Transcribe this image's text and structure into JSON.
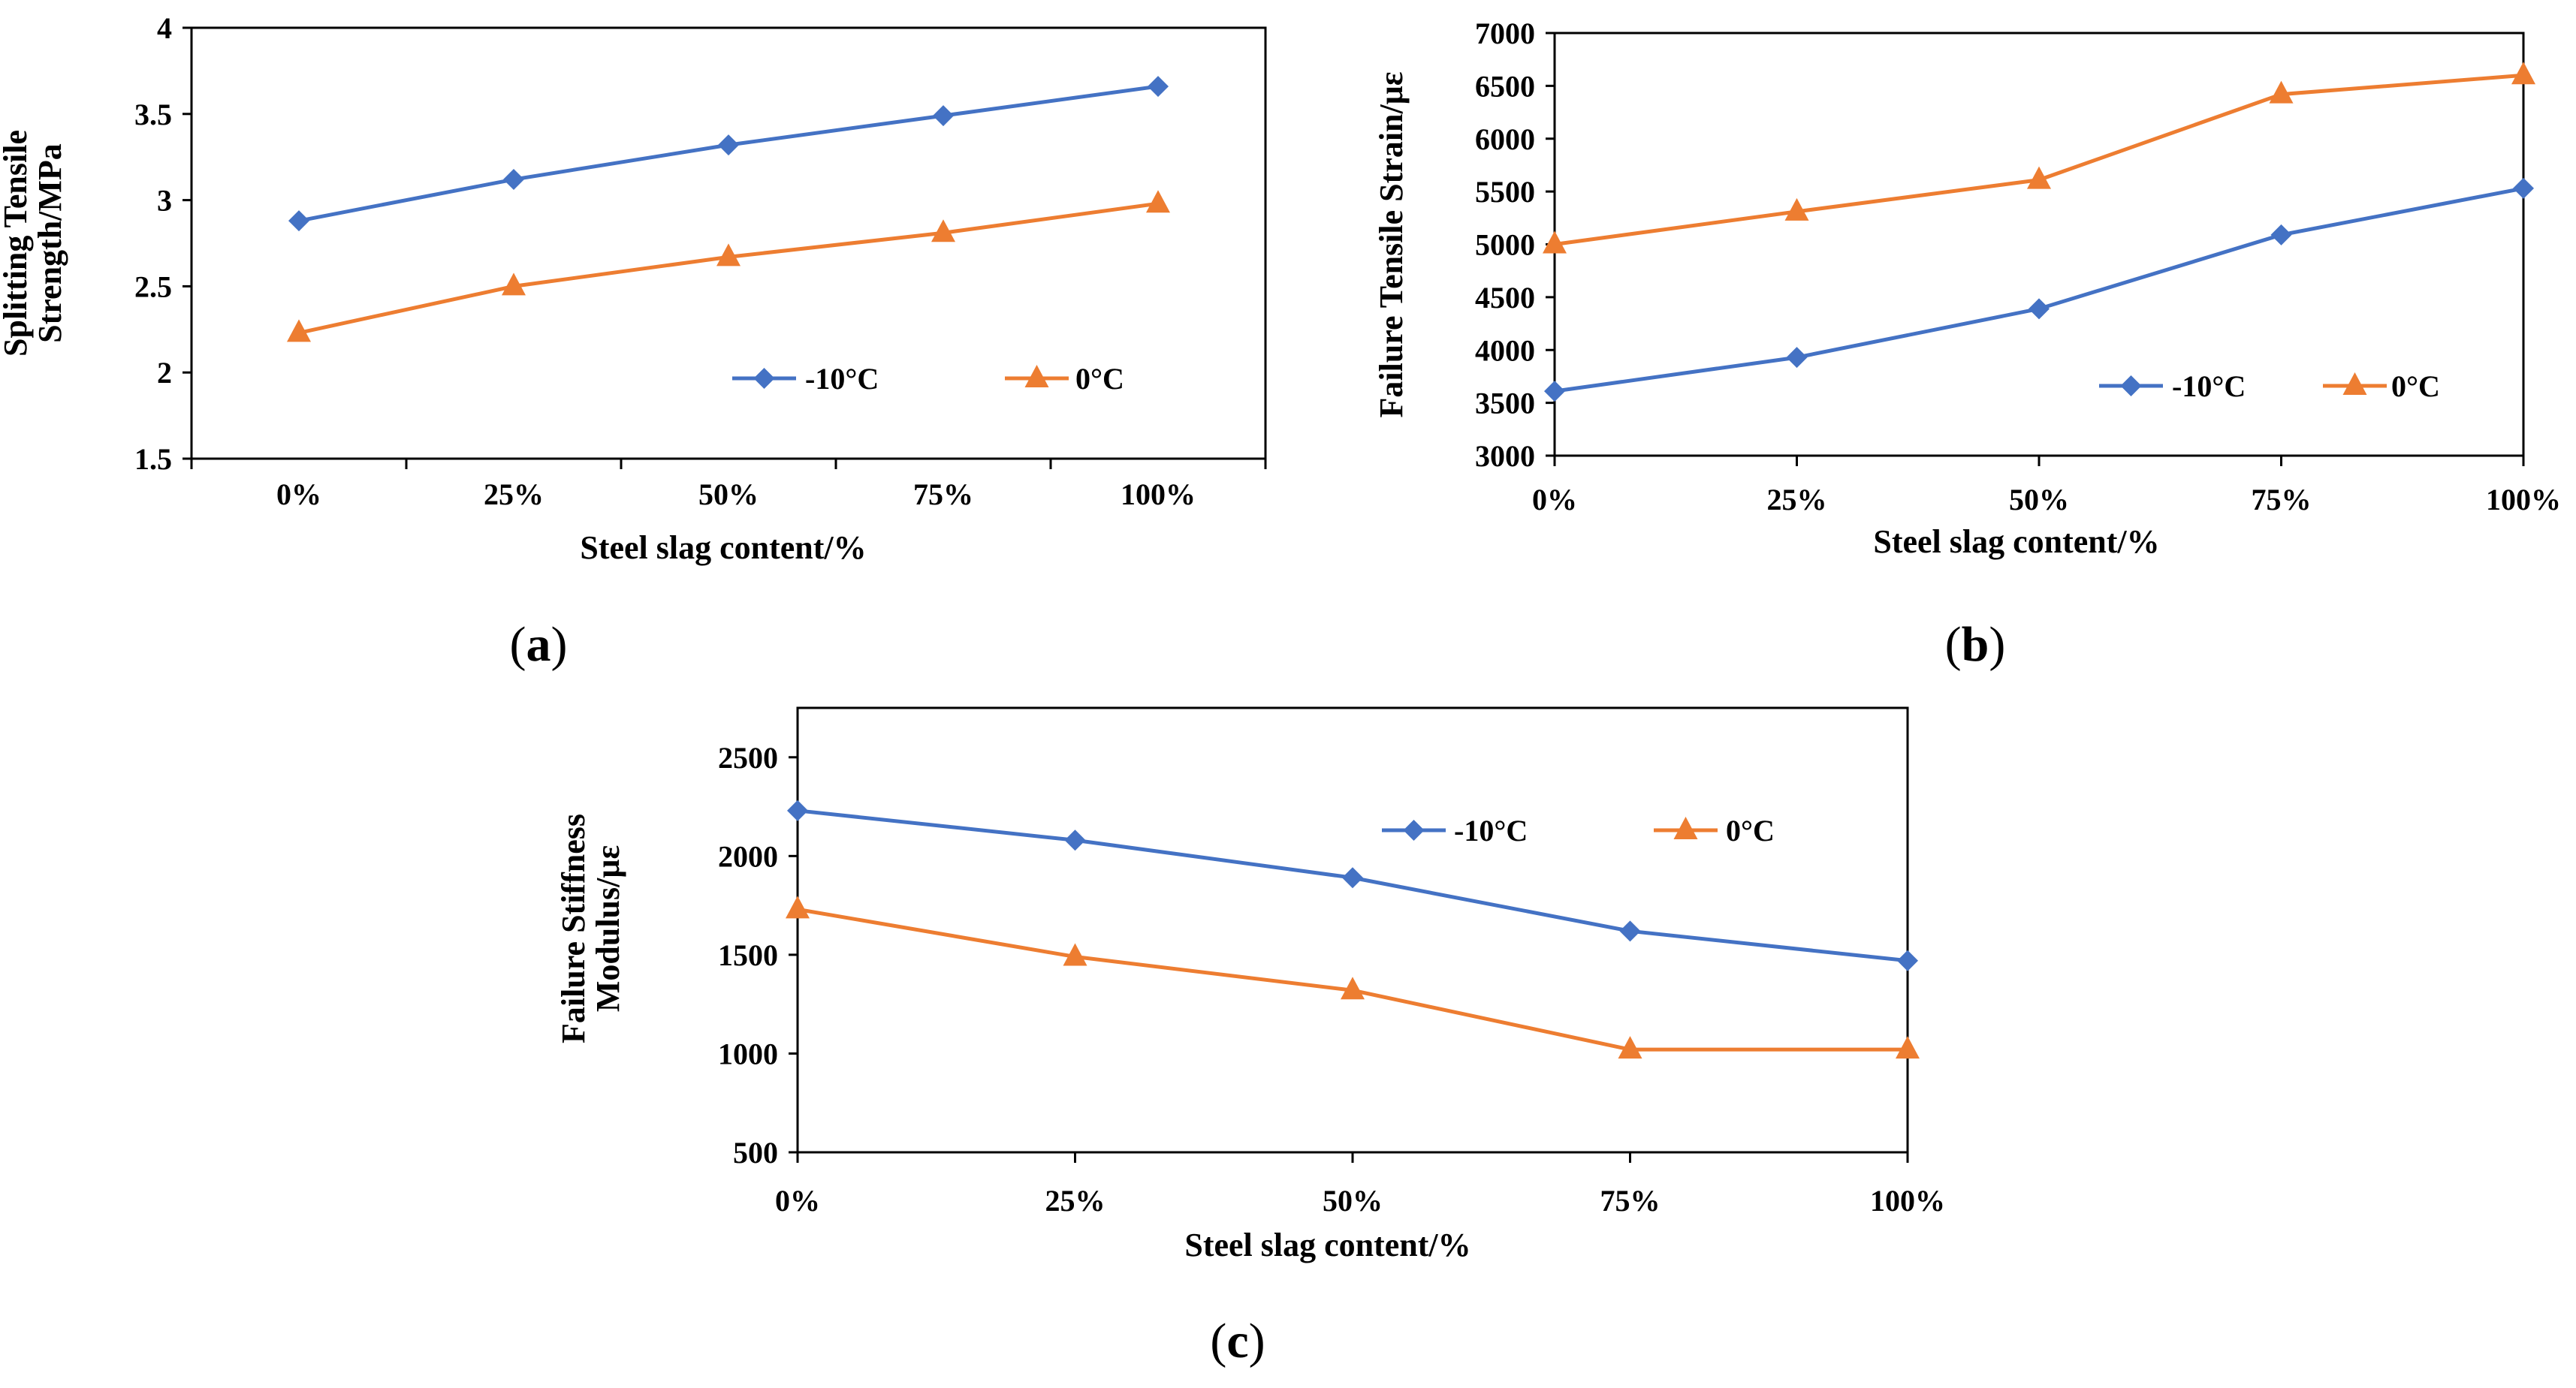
{
  "chart_data": [
    {
      "id": "a",
      "type": "line",
      "panel_label": "a",
      "title": "",
      "xlabel": "Steel slag content/%",
      "ylabel": [
        "Splitting Tensile",
        "Strength/MPa"
      ],
      "categories": [
        "0%",
        "25%",
        "50%",
        "75%",
        "100%"
      ],
      "ylim": [
        1.5,
        4
      ],
      "yticks": [
        "1.5",
        "2",
        "2.5",
        "3",
        "3.5",
        "4"
      ],
      "grid": false,
      "legend_position": "bottom-right",
      "series": [
        {
          "name": "-10°C",
          "color": "#4472C4",
          "marker": "diamond",
          "values": [
            2.88,
            3.12,
            3.32,
            3.49,
            3.66
          ]
        },
        {
          "name": "0°C",
          "color": "#ED7D31",
          "marker": "triangle",
          "values": [
            2.23,
            2.5,
            2.67,
            2.81,
            2.98
          ]
        }
      ]
    },
    {
      "id": "b",
      "type": "line",
      "panel_label": "b",
      "title": "",
      "xlabel": "Steel slag content/%",
      "ylabel": [
        "Failure Tensile Strain/με"
      ],
      "categories": [
        "0%",
        "25%",
        "50%",
        "75%",
        "100%"
      ],
      "ylim": [
        3000,
        7000
      ],
      "yticks": [
        "3000",
        "3500",
        "4000",
        "4500",
        "5000",
        "5500",
        "6000",
        "6500",
        "7000"
      ],
      "grid": false,
      "legend_position": "bottom-right",
      "series": [
        {
          "name": "-10°C",
          "color": "#4472C4",
          "marker": "diamond",
          "values": [
            3610,
            3930,
            4390,
            5090,
            5530
          ]
        },
        {
          "name": "0°C",
          "color": "#ED7D31",
          "marker": "triangle",
          "values": [
            5000,
            5310,
            5610,
            6420,
            6600
          ]
        }
      ]
    },
    {
      "id": "c",
      "type": "line",
      "panel_label": "c",
      "title": "",
      "xlabel": "Steel slag content/%",
      "ylabel": [
        "Failure Stiffness",
        "Modulus/με"
      ],
      "categories": [
        "0%",
        "25%",
        "50%",
        "75%",
        "100%"
      ],
      "ylim": [
        500,
        2750
      ],
      "yticks": [
        "500",
        "1000",
        "1500",
        "2000",
        "2500"
      ],
      "grid": false,
      "legend_position": "top-right",
      "series": [
        {
          "name": "-10°C",
          "color": "#4472C4",
          "marker": "diamond",
          "values": [
            2230,
            2080,
            1890,
            1620,
            1470
          ]
        },
        {
          "name": "0°C",
          "color": "#ED7D31",
          "marker": "triangle",
          "values": [
            1730,
            1490,
            1320,
            1020,
            1020
          ]
        }
      ]
    }
  ]
}
